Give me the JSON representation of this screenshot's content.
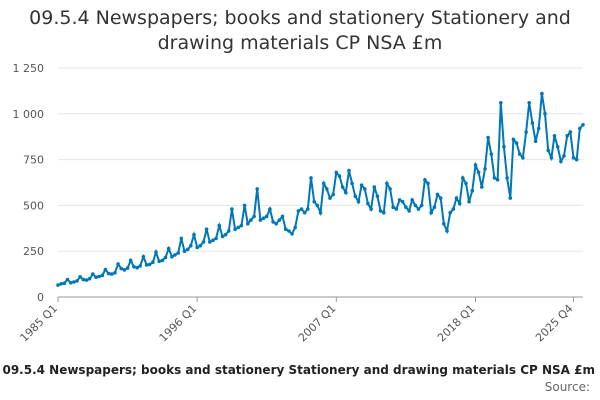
{
  "chart_data": {
    "type": "line",
    "title": "09.5.4 Newspapers; books and stationery Stationery and drawing materials CP NSA £m",
    "xlabel": "",
    "ylabel": "",
    "ylim": [
      0,
      1250
    ],
    "yticks": [
      0,
      250,
      500,
      750,
      1000,
      1250
    ],
    "ytick_labels": [
      "0",
      "250",
      "500",
      "750",
      "1 000",
      "1 250"
    ],
    "xtick_labels": [
      "1985 Q1",
      "1996 Q1",
      "2007 Q1",
      "2018 Q1",
      "2025 Q4"
    ],
    "grid": true,
    "legend": "none",
    "line_color": "#0077b6",
    "x_start": "1985 Q1",
    "x_end": "2025 Q4",
    "series": [
      {
        "values": [
          65,
          72,
          75,
          95,
          78,
          82,
          88,
          110,
          95,
          92,
          100,
          125,
          108,
          112,
          118,
          150,
          128,
          125,
          132,
          180,
          155,
          148,
          158,
          200,
          165,
          160,
          170,
          220,
          175,
          178,
          190,
          245,
          195,
          200,
          215,
          265,
          220,
          230,
          240,
          320,
          250,
          260,
          280,
          340,
          270,
          280,
          300,
          370,
          300,
          310,
          320,
          390,
          330,
          340,
          360,
          480,
          370,
          380,
          390,
          500,
          400,
          420,
          440,
          590,
          420,
          430,
          440,
          480,
          410,
          400,
          420,
          440,
          370,
          360,
          345,
          380,
          470,
          480,
          460,
          480,
          650,
          520,
          500,
          460,
          620,
          590,
          540,
          560,
          680,
          660,
          600,
          570,
          690,
          620,
          550,
          520,
          610,
          590,
          510,
          480,
          600,
          550,
          470,
          460,
          620,
          590,
          490,
          480,
          530,
          520,
          490,
          470,
          530,
          500,
          480,
          500,
          640,
          620,
          460,
          490,
          560,
          540,
          400,
          360,
          460,
          480,
          540,
          510,
          650,
          620,
          520,
          580,
          720,
          680,
          600,
          700,
          870,
          780,
          650,
          640,
          1060,
          820,
          650,
          540,
          860,
          840,
          780,
          760,
          900,
          1060,
          950,
          850,
          920,
          1110,
          1000,
          800,
          760,
          880,
          820,
          740,
          770,
          880,
          900,
          760,
          750,
          920,
          940
        ]
      }
    ]
  },
  "footer": {
    "title": "09.5.4 Newspapers; books and stationery Stationery and drawing materials CP NSA £m",
    "source": "Source:"
  }
}
